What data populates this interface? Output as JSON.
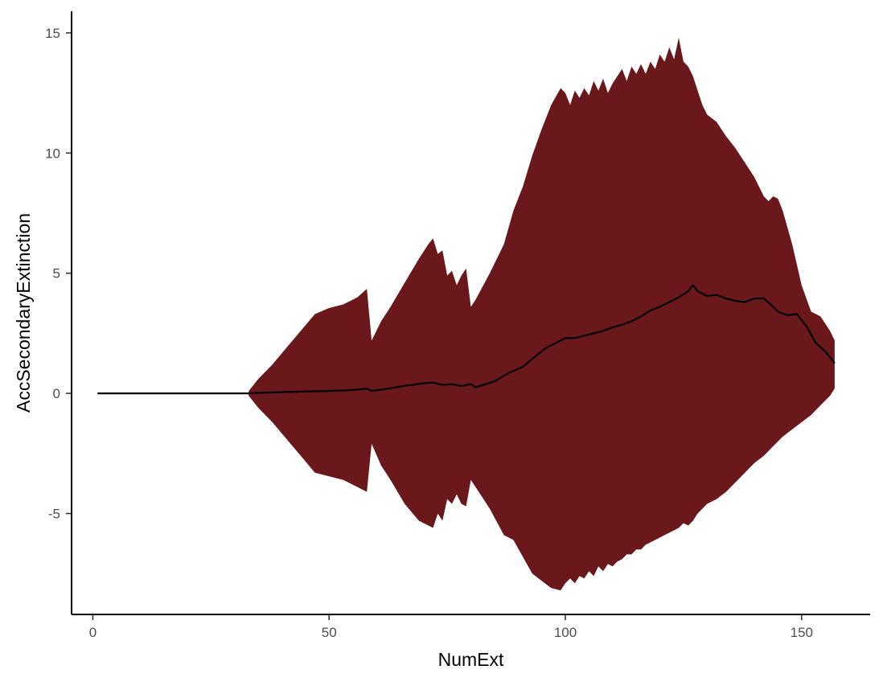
{
  "chart_data": {
    "type": "area",
    "title": "",
    "xlabel": "NumExt",
    "ylabel": "AccSecondaryExtinction",
    "xlim": [
      -4.5,
      164.5
    ],
    "ylim": [
      -9.2,
      15.9
    ],
    "x_ticks": [
      0,
      50,
      100,
      150
    ],
    "y_ticks": [
      -5,
      0,
      5,
      10,
      15
    ],
    "x_tick_labels": [
      "0",
      "50",
      "100",
      "150"
    ],
    "y_tick_labels": [
      "-5",
      "0",
      "5",
      "10",
      "15"
    ],
    "grid": false,
    "legend": "none",
    "colors": {
      "ribbon": "#6b181c",
      "line": "#000000",
      "axis": "#000000"
    },
    "series": [
      {
        "kind": "line",
        "x": [
          1,
          10,
          20,
          30,
          33,
          35,
          40,
          45,
          50,
          55,
          58,
          59,
          62,
          65,
          70,
          72,
          74,
          76,
          78,
          80,
          81,
          85,
          88,
          91,
          94,
          96,
          98,
          100,
          102,
          104,
          106,
          108,
          110,
          112,
          114,
          116,
          118,
          120,
          122,
          124,
          126,
          127,
          128,
          130,
          132,
          134,
          136,
          138,
          140,
          142,
          144,
          145,
          147,
          149,
          151,
          153,
          155,
          157
        ],
        "y": [
          0,
          0,
          0,
          0,
          0,
          0.02,
          0.05,
          0.08,
          0.1,
          0.14,
          0.2,
          0.1,
          0.18,
          0.28,
          0.42,
          0.45,
          0.35,
          0.38,
          0.3,
          0.38,
          0.25,
          0.5,
          0.85,
          1.1,
          1.6,
          1.9,
          2.1,
          2.3,
          2.3,
          2.4,
          2.5,
          2.6,
          2.75,
          2.85,
          3.0,
          3.2,
          3.45,
          3.6,
          3.8,
          4.0,
          4.25,
          4.5,
          4.25,
          4.05,
          4.1,
          3.95,
          3.85,
          3.8,
          3.95,
          3.95,
          3.6,
          3.4,
          3.25,
          3.3,
          2.8,
          2.1,
          1.75,
          1.25
        ]
      },
      {
        "kind": "ribbon-upper",
        "x": [
          33,
          35,
          38,
          41,
          44,
          47,
          50,
          53,
          56,
          58,
          59,
          61,
          63,
          66,
          69,
          71,
          72,
          73,
          74,
          75,
          76,
          77,
          78,
          79,
          80,
          81,
          84,
          87,
          89,
          91,
          93,
          95,
          97,
          99,
          100,
          101,
          102,
          103,
          104,
          105,
          106,
          107,
          108,
          109,
          110,
          111,
          112,
          113,
          114,
          115,
          116,
          117,
          118,
          119,
          120,
          121,
          122,
          123,
          124,
          125,
          126,
          127,
          128,
          129,
          130,
          132,
          134,
          136,
          138,
          140,
          142,
          143,
          144,
          145,
          146,
          148,
          150,
          152,
          154,
          156,
          157
        ],
        "y": [
          0.1,
          0.6,
          1.2,
          1.9,
          2.6,
          3.3,
          3.55,
          3.7,
          4.0,
          4.35,
          2.2,
          3.0,
          3.6,
          4.6,
          5.6,
          6.2,
          6.45,
          5.8,
          5.95,
          4.9,
          5.1,
          4.5,
          4.9,
          5.2,
          3.6,
          3.9,
          5.0,
          6.2,
          7.6,
          8.6,
          9.9,
          11.0,
          12.0,
          12.7,
          12.5,
          12.0,
          12.6,
          12.3,
          12.7,
          12.4,
          13.0,
          12.6,
          13.1,
          12.5,
          12.9,
          13.2,
          13.5,
          13.0,
          13.6,
          13.3,
          13.7,
          13.3,
          13.8,
          13.5,
          14.1,
          13.8,
          14.4,
          13.9,
          14.8,
          13.8,
          13.6,
          13.2,
          12.6,
          12.0,
          11.6,
          11.3,
          10.7,
          10.2,
          9.6,
          9.0,
          8.2,
          8.0,
          8.2,
          8.1,
          7.6,
          6.2,
          4.5,
          3.4,
          3.2,
          2.6,
          2.2
        ]
      },
      {
        "kind": "ribbon-lower",
        "x": [
          33,
          35,
          38,
          41,
          44,
          47,
          50,
          53,
          56,
          58,
          59,
          61,
          63,
          66,
          69,
          71,
          72,
          73,
          74,
          75,
          76,
          77,
          78,
          79,
          80,
          81,
          84,
          87,
          89,
          91,
          93,
          95,
          97,
          99,
          100,
          101,
          102,
          103,
          104,
          105,
          106,
          107,
          108,
          109,
          110,
          111,
          112,
          113,
          114,
          115,
          116,
          117,
          118,
          119,
          120,
          121,
          122,
          123,
          124,
          125,
          126,
          127,
          128,
          129,
          130,
          132,
          134,
          136,
          138,
          140,
          142,
          143,
          144,
          145,
          146,
          148,
          150,
          152,
          154,
          156,
          157
        ],
        "y": [
          -0.1,
          -0.6,
          -1.2,
          -1.9,
          -2.6,
          -3.3,
          -3.45,
          -3.6,
          -3.9,
          -4.1,
          -2.1,
          -3.0,
          -3.6,
          -4.6,
          -5.3,
          -5.5,
          -5.6,
          -5.0,
          -5.3,
          -4.4,
          -4.6,
          -4.2,
          -4.6,
          -4.7,
          -3.6,
          -3.9,
          -4.8,
          -5.9,
          -6.1,
          -6.8,
          -7.5,
          -7.8,
          -8.1,
          -8.2,
          -7.9,
          -7.7,
          -7.9,
          -7.6,
          -7.7,
          -7.4,
          -7.6,
          -7.2,
          -7.4,
          -7.1,
          -7.2,
          -7.0,
          -6.9,
          -6.7,
          -6.7,
          -6.5,
          -6.5,
          -6.3,
          -6.2,
          -6.1,
          -6.0,
          -5.9,
          -5.8,
          -5.7,
          -5.6,
          -5.4,
          -5.5,
          -5.3,
          -5.0,
          -4.8,
          -4.6,
          -4.4,
          -4.1,
          -3.7,
          -3.3,
          -2.9,
          -2.6,
          -2.4,
          -2.2,
          -2.0,
          -1.8,
          -1.5,
          -1.2,
          -0.9,
          -0.5,
          -0.1,
          0.2
        ]
      }
    ]
  }
}
